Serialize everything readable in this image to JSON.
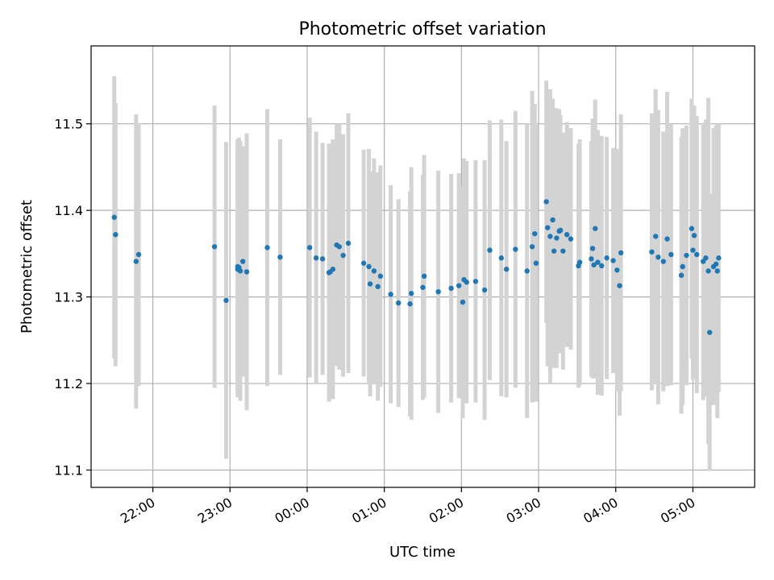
{
  "chart_data": {
    "type": "scatter",
    "title": "Photometric offset variation",
    "xlabel": "UTC time",
    "ylabel": "Photometric offset",
    "xlim": [
      "21:12",
      "05:48"
    ],
    "ylim": [
      11.08,
      11.59
    ],
    "grid": true,
    "x_ticks": [
      "22:00",
      "23:00",
      "00:00",
      "01:00",
      "02:00",
      "03:00",
      "04:00",
      "05:00"
    ],
    "y_ticks": [
      "11.1",
      "11.2",
      "11.3",
      "11.4",
      "11.5"
    ],
    "colors": {
      "point": "#1f77b4",
      "errorbar": "#d3d3d3",
      "grid": "#b0b0b0"
    },
    "series": [
      {
        "x": [
          "21:30",
          "21:31",
          "21:47",
          "21:49",
          "22:48",
          "22:57",
          "23:06",
          "23:07",
          "23:10",
          "23:13",
          "23:29",
          "23:39",
          "23:06",
          "23:08",
          "00:02",
          "00:07",
          "00:12",
          "00:17",
          "00:18",
          "00:20",
          "00:23",
          "00:25",
          "00:28",
          "00:32",
          "00:44",
          "00:48",
          "00:49",
          "00:52",
          "00:55",
          "00:57",
          "01:05",
          "01:11",
          "01:20",
          "01:21",
          "01:30",
          "01:31",
          "01:42",
          "01:52",
          "01:58",
          "02:01",
          "02:02",
          "02:04",
          "02:11",
          "02:18",
          "02:22",
          "02:31",
          "02:35",
          "02:42",
          "02:51",
          "02:55",
          "02:57",
          "02:58",
          "03:06",
          "03:07",
          "03:09",
          "03:11",
          "03:12",
          "03:14",
          "03:16",
          "03:17",
          "03:19",
          "03:22",
          "03:25",
          "03:31",
          "03:32",
          "03:41",
          "03:42",
          "03:43",
          "03:44",
          "03:46",
          "03:49",
          "03:53",
          "03:58",
          "04:01",
          "04:03",
          "04:04",
          "04:28",
          "04:31",
          "04:33",
          "04:37",
          "04:40",
          "04:43",
          "04:51",
          "04:52",
          "04:55",
          "04:59",
          "05:00",
          "05:01",
          "05:03",
          "05:08",
          "05:10",
          "05:12",
          "05:13",
          "05:16",
          "05:18",
          "05:20",
          "05:19"
        ],
        "y": [
          11.392,
          11.372,
          11.341,
          11.349,
          11.358,
          11.296,
          11.332,
          11.334,
          11.341,
          11.329,
          11.357,
          11.346,
          11.335,
          11.33,
          11.357,
          11.345,
          11.344,
          11.328,
          11.329,
          11.332,
          11.36,
          11.358,
          11.348,
          11.362,
          11.339,
          11.335,
          11.315,
          11.33,
          11.312,
          11.324,
          11.303,
          11.293,
          11.292,
          11.304,
          11.311,
          11.324,
          11.306,
          11.31,
          11.313,
          11.294,
          11.32,
          11.317,
          11.318,
          11.308,
          11.354,
          11.345,
          11.332,
          11.355,
          11.33,
          11.358,
          11.373,
          11.339,
          11.41,
          11.38,
          11.37,
          11.389,
          11.353,
          11.368,
          11.376,
          11.377,
          11.353,
          11.372,
          11.367,
          11.336,
          11.34,
          11.344,
          11.356,
          11.337,
          11.379,
          11.34,
          11.336,
          11.345,
          11.342,
          11.331,
          11.313,
          11.351,
          11.352,
          11.37,
          11.346,
          11.341,
          11.367,
          11.349,
          11.325,
          11.335,
          11.348,
          11.379,
          11.354,
          11.371,
          11.349,
          11.341,
          11.345,
          11.33,
          11.259,
          11.335,
          11.338,
          11.345,
          11.33
        ],
        "yerr": [
          0.163,
          0.152,
          0.17,
          0.152,
          0.163,
          0.183,
          0.148,
          0.15,
          0.133,
          0.16,
          0.16,
          0.136,
          0.147,
          0.15,
          0.15,
          0.146,
          0.134,
          0.149,
          0.143,
          0.15,
          0.14,
          0.142,
          0.14,
          0.15,
          0.131,
          0.136,
          0.13,
          0.13,
          0.132,
          0.128,
          0.126,
          0.12,
          0.13,
          0.146,
          0.13,
          0.14,
          0.14,
          0.132,
          0.13,
          0.134,
          0.14,
          0.14,
          0.14,
          0.15,
          0.15,
          0.16,
          0.148,
          0.16,
          0.17,
          0.18,
          0.15,
          0.16,
          0.14,
          0.16,
          0.17,
          0.14,
          0.135,
          0.15,
          0.141,
          0.133,
          0.137,
          0.13,
          0.128,
          0.141,
          0.142,
          0.136,
          0.15,
          0.131,
          0.149,
          0.153,
          0.15,
          0.14,
          0.13,
          0.14,
          0.15,
          0.16,
          0.16,
          0.17,
          0.17,
          0.15,
          0.17,
          0.151,
          0.16,
          0.16,
          0.15,
          0.15,
          0.15,
          0.15,
          0.16,
          0.16,
          0.16,
          0.2,
          0.16,
          0.16,
          0.16,
          0.155,
          0.17
        ]
      }
    ]
  }
}
